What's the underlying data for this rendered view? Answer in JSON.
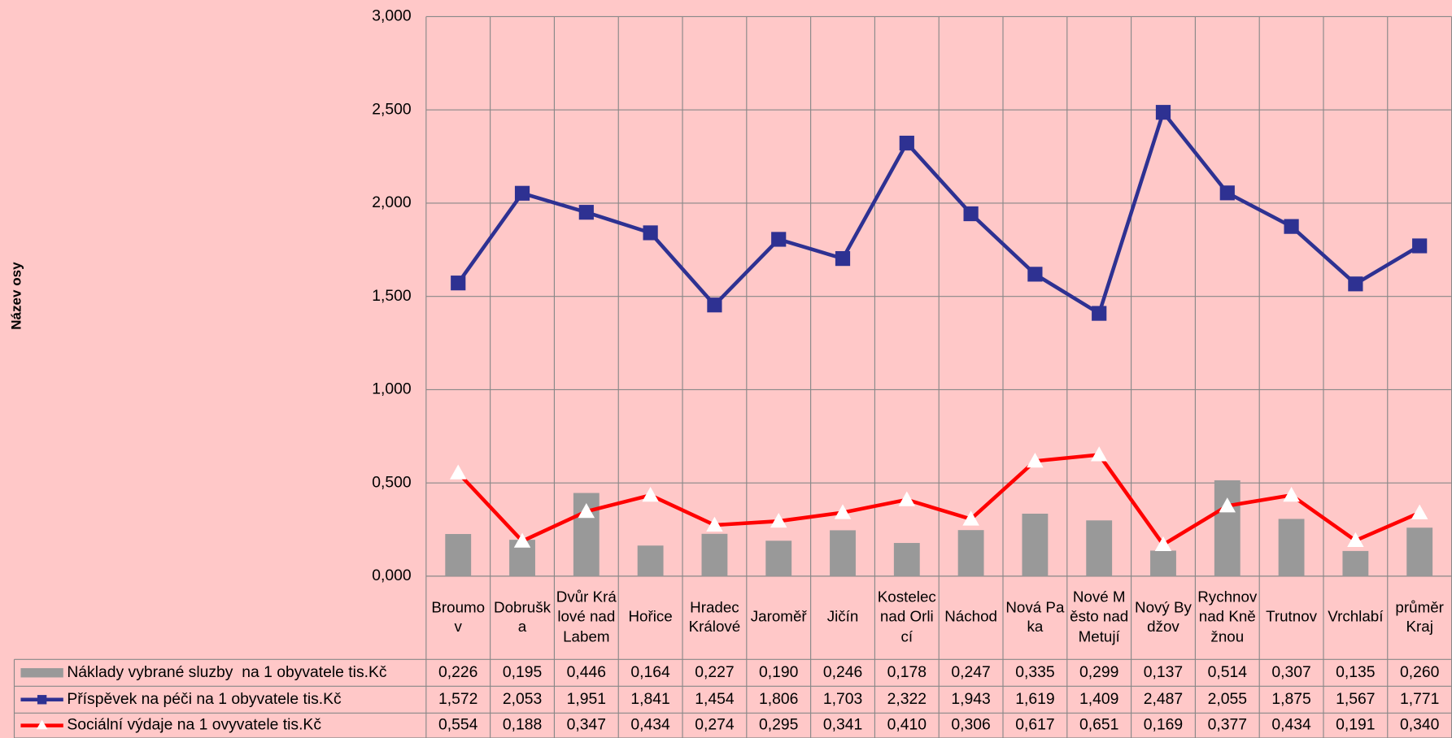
{
  "chart_data": {
    "type": "combo",
    "y_axis_label": "Název osy",
    "categories": [
      "Broumov",
      "Dobruška",
      "Dvůr Králové nad Labem",
      "Hořice",
      "Hradec Králové",
      "Jaroměř",
      "Jičín",
      "Kostelec nad Orlicí",
      "Náchod",
      "Nová Paka",
      "Nové Město nad Metují",
      "Nový Bydžov",
      "Rychnov nad Kněžnou",
      "Trutnov",
      "Vrchlabí",
      "průměr Kraj"
    ],
    "ylim": [
      0,
      3
    ],
    "yticks": [
      {
        "value": 0,
        "label": "0,000"
      },
      {
        "value": 0.5,
        "label": "0,500"
      },
      {
        "value": 1,
        "label": "1,000"
      },
      {
        "value": 1.5,
        "label": "1,500"
      },
      {
        "value": 2,
        "label": "2,000"
      },
      {
        "value": 2.5,
        "label": "2,500"
      },
      {
        "value": 3,
        "label": "3,000"
      }
    ],
    "grid": true,
    "series": [
      {
        "name": "Náklady vybrané sluzby  na 1 obyvatele tis.Kč",
        "type": "bar",
        "color": "#999999",
        "values": [
          0.226,
          0.195,
          0.446,
          0.164,
          0.227,
          0.19,
          0.246,
          0.178,
          0.247,
          0.335,
          0.299,
          0.137,
          0.514,
          0.307,
          0.135,
          0.26
        ],
        "value_labels": [
          "0,226",
          "0,195",
          "0,446",
          "0,164",
          "0,227",
          "0,190",
          "0,246",
          "0,178",
          "0,247",
          "0,335",
          "0,299",
          "0,137",
          "0,514",
          "0,307",
          "0,135",
          "0,260"
        ]
      },
      {
        "name": "Příspěvek na péči na 1 obyvatele tis.Kč",
        "type": "line",
        "marker": "square",
        "color": "#2e3192",
        "values": [
          1.572,
          2.053,
          1.951,
          1.841,
          1.454,
          1.806,
          1.703,
          2.322,
          1.943,
          1.619,
          1.409,
          2.487,
          2.055,
          1.875,
          1.567,
          1.771
        ],
        "value_labels": [
          "1,572",
          "2,053",
          "1,951",
          "1,841",
          "1,454",
          "1,806",
          "1,703",
          "2,322",
          "1,943",
          "1,619",
          "1,409",
          "2,487",
          "2,055",
          "1,875",
          "1,567",
          "1,771"
        ]
      },
      {
        "name": "Sociální výdaje na 1 ovyvatele tis.Kč",
        "type": "line",
        "marker": "triangle",
        "color": "#ff0000",
        "values": [
          0.554,
          0.188,
          0.347,
          0.434,
          0.274,
          0.295,
          0.341,
          0.41,
          0.306,
          0.617,
          0.651,
          0.169,
          0.377,
          0.434,
          0.191,
          0.34
        ],
        "value_labels": [
          "0,554",
          "0,188",
          "0,347",
          "0,434",
          "0,274",
          "0,295",
          "0,341",
          "0,410",
          "0,306",
          "0,617",
          "0,651",
          "0,169",
          "0,377",
          "0,434",
          "0,191",
          "0,340"
        ]
      }
    ]
  }
}
